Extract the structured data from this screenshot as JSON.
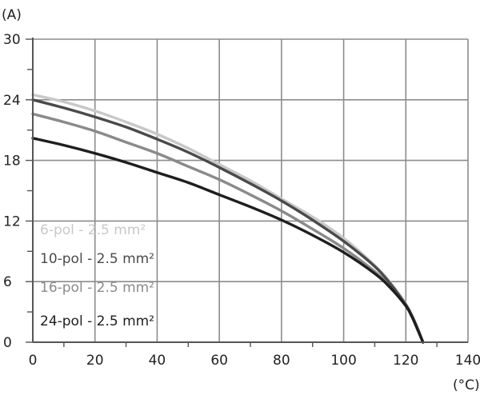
{
  "chart_data": {
    "type": "line",
    "title": "",
    "xlabel": "",
    "ylabel": "",
    "x_unit": "(°C)",
    "y_unit": "(A)",
    "xlim": [
      0,
      140
    ],
    "ylim": [
      0,
      30
    ],
    "x_ticks": [
      "0",
      "20",
      "40",
      "60",
      "80",
      "100",
      "120",
      "140"
    ],
    "y_ticks": [
      "0",
      "6",
      "12",
      "18",
      "24",
      "30"
    ],
    "grid": true,
    "legend_position": "bottom-left",
    "series": [
      {
        "name": "6-pol - 2.5 mm²",
        "color": "#c8c8c8",
        "x": [
          0,
          10,
          20,
          30,
          40,
          50,
          60,
          70,
          80,
          90,
          100,
          110,
          115,
          120,
          122,
          124,
          125.5
        ],
        "y": [
          24.5,
          23.8,
          22.9,
          21.8,
          20.6,
          19.2,
          17.6,
          16.0,
          14.2,
          12.4,
          10.3,
          7.6,
          5.9,
          3.8,
          2.6,
          1.2,
          0
        ]
      },
      {
        "name": "10-pol - 2.5 mm²",
        "color": "#4a4a4a",
        "x": [
          0,
          10,
          20,
          30,
          40,
          50,
          60,
          70,
          80,
          90,
          100,
          110,
          115,
          120,
          122,
          124,
          125.5
        ],
        "y": [
          24.0,
          23.2,
          22.3,
          21.3,
          20.1,
          18.8,
          17.3,
          15.7,
          14.0,
          12.1,
          10.0,
          7.5,
          5.8,
          3.7,
          2.6,
          1.2,
          0
        ]
      },
      {
        "name": "16-pol - 2.5 mm²",
        "color": "#8a8a8a",
        "x": [
          0,
          10,
          20,
          30,
          40,
          50,
          60,
          70,
          80,
          90,
          100,
          110,
          115,
          120,
          122,
          124,
          125.5
        ],
        "y": [
          22.6,
          21.8,
          20.9,
          19.8,
          18.7,
          17.4,
          16.1,
          14.6,
          13.0,
          11.2,
          9.3,
          7.0,
          5.5,
          3.6,
          2.5,
          1.1,
          0
        ]
      },
      {
        "name": "24-pol - 2.5 mm²",
        "color": "#1e1e1e",
        "x": [
          0,
          10,
          20,
          30,
          40,
          50,
          60,
          70,
          80,
          90,
          100,
          110,
          115,
          120,
          122,
          124,
          125.5
        ],
        "y": [
          20.2,
          19.5,
          18.7,
          17.8,
          16.8,
          15.8,
          14.6,
          13.4,
          12.1,
          10.6,
          8.9,
          6.8,
          5.4,
          3.6,
          2.5,
          1.1,
          0
        ]
      }
    ]
  }
}
